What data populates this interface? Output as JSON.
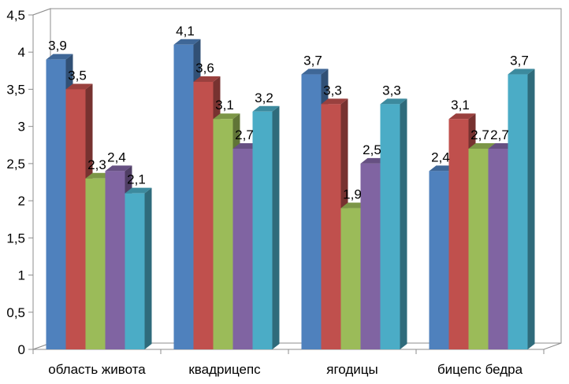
{
  "chart_data": {
    "type": "bar",
    "categories": [
      "область живота",
      "квадрицепс",
      "ягодицы",
      "бицепс бедра"
    ],
    "series": [
      {
        "values": [
          3.9,
          4.1,
          3.7,
          2.4
        ],
        "color": "#4F81BD"
      },
      {
        "values": [
          3.5,
          3.6,
          3.3,
          3.1
        ],
        "color": "#C0504D"
      },
      {
        "values": [
          2.3,
          3.1,
          1.9,
          2.7
        ],
        "color": "#9BBB59"
      },
      {
        "values": [
          2.4,
          2.7,
          2.5,
          2.7
        ],
        "color": "#8064A2"
      },
      {
        "values": [
          2.1,
          3.2,
          3.3,
          3.7
        ],
        "color": "#4BACC6"
      }
    ],
    "data_labels": [
      [
        "3,9",
        "4,1",
        "3,7",
        "2,4"
      ],
      [
        "3,5",
        "3,6",
        "3,3",
        "3,1"
      ],
      [
        "2,3",
        "3,1",
        "1,9",
        "2,7"
      ],
      [
        "2,4",
        "2,7",
        "2,5",
        "2,7"
      ],
      [
        "2,1",
        "3,2",
        "3,3",
        "3,7"
      ]
    ],
    "y_ticks": [
      0,
      0.5,
      1,
      1.5,
      2,
      2.5,
      3,
      3.5,
      4,
      4.5
    ],
    "y_tick_labels": [
      "0",
      "0,5",
      "1",
      "1,5",
      "2",
      "2,5",
      "3",
      "3,5",
      "4",
      "4,5"
    ],
    "ylim": [
      0,
      4.5
    ],
    "grid": true,
    "legend": "none",
    "style": "3d-clustered-column"
  }
}
